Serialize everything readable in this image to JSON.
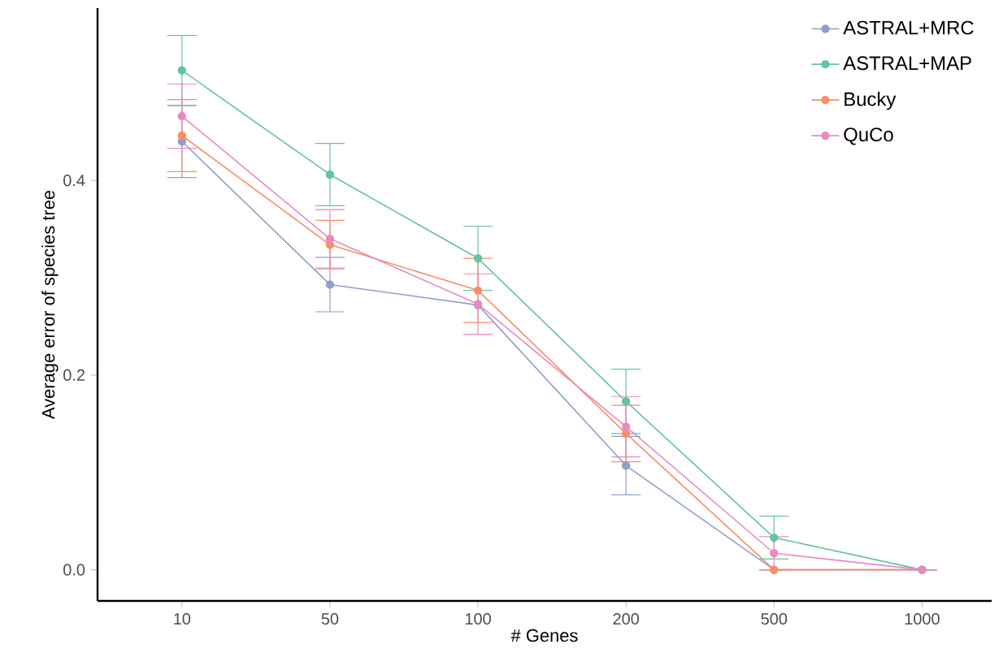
{
  "chart_data": {
    "type": "line",
    "xlabel": "# Genes",
    "ylabel": "Average error of species tree",
    "categories": [
      "10",
      "50",
      "100",
      "200",
      "500",
      "1000"
    ],
    "series": [
      {
        "name": "ASTRAL+MRC",
        "color": "#8da0cb",
        "values": [
          0.44,
          0.293,
          0.272,
          0.107,
          0,
          0
        ],
        "errors": [
          0.037,
          0.028,
          null,
          0.03,
          0,
          0
        ]
      },
      {
        "name": "ASTRAL+MAP",
        "color": "#66c2a5",
        "values": [
          0.513,
          0.406,
          0.32,
          0.173,
          0.033,
          0
        ],
        "errors": [
          0.036,
          0.032,
          0.033,
          0.033,
          0.022,
          0
        ]
      },
      {
        "name": "Bucky",
        "color": "#fc8d62",
        "values": [
          0.446,
          0.334,
          0.287,
          0.14,
          0,
          0
        ],
        "errors": [
          0.037,
          0.025,
          0.033,
          0.029,
          0,
          0
        ]
      },
      {
        "name": "QuCo",
        "color": "#e78ac3",
        "values": [
          0.466,
          0.34,
          0.273,
          0.147,
          0.017,
          0
        ],
        "errors": [
          0.033,
          0.03,
          0.031,
          0.031,
          0.017,
          0
        ]
      }
    ],
    "ylim": [
      -0.032,
      0.577
    ],
    "yticks": [
      {
        "value": 0,
        "label": "0.0"
      },
      {
        "value": 0.2,
        "label": "0.2"
      },
      {
        "value": 0.4,
        "label": "0.4"
      }
    ],
    "grid": false,
    "legend": "top right",
    "marker": "circle",
    "line_style": "solid"
  }
}
